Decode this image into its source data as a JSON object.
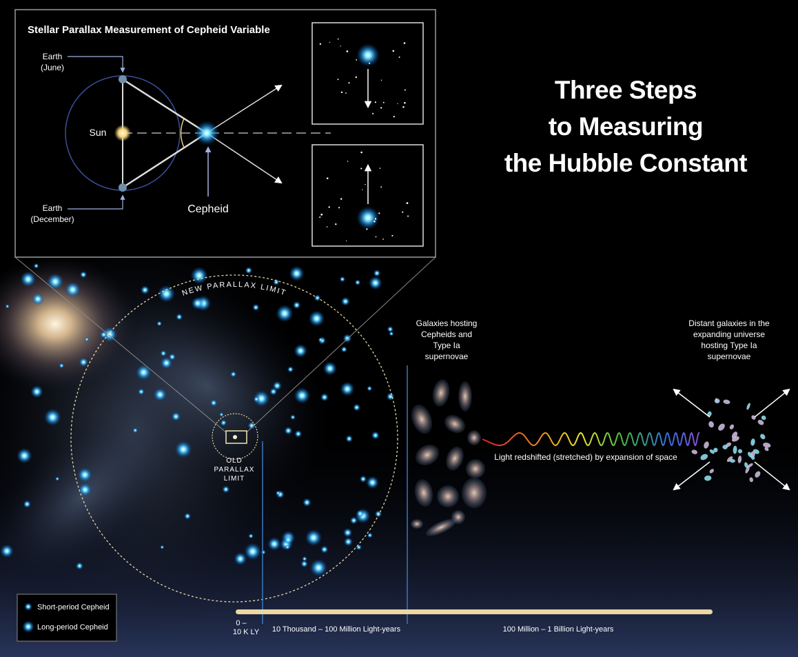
{
  "inset": {
    "title": "Stellar Parallax Measurement of Cepheid Variable",
    "earth_june": [
      "Earth",
      "(June)"
    ],
    "sun": "Sun",
    "earth_december": [
      "Earth",
      "(December)"
    ],
    "cepheid": "Cepheid"
  },
  "title": [
    "Three Steps",
    "to Measuring",
    "the Hubble Constant"
  ],
  "new_parallax_limit": "NEW PARALLAX LIMIT",
  "old_parallax_limit": [
    "OLD",
    "PARALLAX",
    "LIMIT"
  ],
  "galaxies_label": [
    "Galaxies hosting",
    "Cepheids and",
    "Type Ia",
    "supernovae"
  ],
  "distant_label": [
    "Distant galaxies in the",
    "expanding universe",
    "hosting Type Ia",
    "supernovae"
  ],
  "redshift_label": "Light redshifted (stretched) by expansion of space",
  "legend": [
    "Short-period Cepheid",
    "Long-period Cepheid"
  ],
  "scale": {
    "near": [
      "0 –",
      "10 K LY"
    ],
    "middle": "10 Thousand – 100 Million Light-years",
    "far": "100 Million  – 1 Billion Light-years"
  }
}
